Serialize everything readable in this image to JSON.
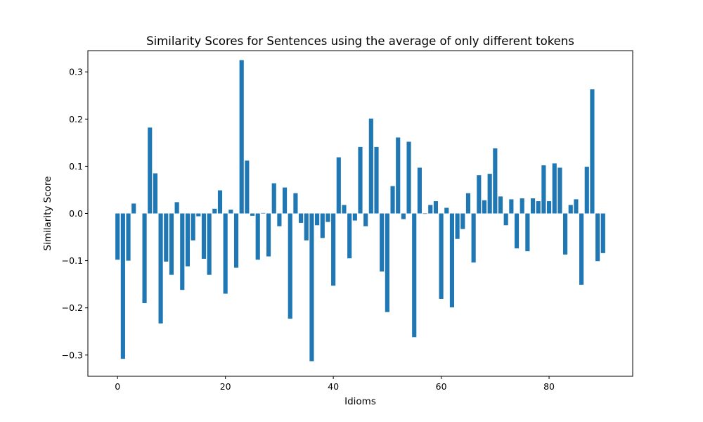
{
  "chart_data": {
    "type": "bar",
    "title": "Similarity Scores for Sentences using the average of only different tokens",
    "xlabel": "Idioms",
    "ylabel": "Similarity Score",
    "xlim": [
      -5.5,
      95.5
    ],
    "ylim": [
      -0.345,
      0.345
    ],
    "xticks": [
      0,
      20,
      40,
      60,
      80
    ],
    "xtick_labels": [
      "0",
      "20",
      "40",
      "60",
      "80"
    ],
    "yticks": [
      -0.3,
      -0.2,
      -0.1,
      0.0,
      0.1,
      0.2,
      0.3
    ],
    "ytick_labels": [
      "−0.3",
      "−0.2",
      "−0.1",
      "0.0",
      "0.1",
      "0.2",
      "0.3"
    ],
    "grid": false,
    "bar_color": "#1f77b4",
    "x": [
      0,
      1,
      2,
      3,
      4,
      5,
      6,
      7,
      8,
      9,
      10,
      11,
      12,
      13,
      14,
      15,
      16,
      17,
      18,
      19,
      20,
      21,
      22,
      23,
      24,
      25,
      26,
      27,
      28,
      29,
      30,
      31,
      32,
      33,
      34,
      35,
      36,
      37,
      38,
      39,
      40,
      41,
      42,
      43,
      44,
      45,
      46,
      47,
      48,
      49,
      50,
      51,
      52,
      53,
      54,
      55,
      56,
      57,
      58,
      59,
      60,
      61,
      62,
      63,
      64,
      65,
      66,
      67,
      68,
      69,
      70,
      71,
      72,
      73,
      74,
      75,
      76,
      77,
      78,
      79,
      80,
      81,
      82,
      83,
      84,
      85,
      86,
      87,
      88,
      89,
      90
    ],
    "values": [
      -0.098,
      -0.308,
      -0.1,
      0.021,
      0.0,
      -0.19,
      0.182,
      0.085,
      -0.233,
      -0.102,
      -0.13,
      0.024,
      -0.162,
      -0.112,
      -0.057,
      -0.006,
      -0.096,
      -0.13,
      0.01,
      0.049,
      -0.17,
      0.008,
      -0.115,
      0.325,
      0.112,
      -0.005,
      -0.098,
      0.001,
      -0.091,
      0.064,
      -0.027,
      0.055,
      -0.223,
      0.043,
      -0.02,
      -0.057,
      -0.313,
      -0.025,
      -0.052,
      -0.018,
      -0.153,
      0.119,
      0.018,
      -0.095,
      -0.015,
      0.141,
      -0.027,
      0.201,
      0.141,
      -0.123,
      -0.209,
      0.058,
      0.161,
      -0.012,
      0.152,
      -0.262,
      0.097,
      -0.001,
      0.018,
      0.026,
      -0.181,
      0.012,
      -0.199,
      -0.054,
      -0.033,
      0.043,
      -0.104,
      0.081,
      0.028,
      0.084,
      0.138,
      0.036,
      -0.025,
      0.03,
      -0.074,
      0.032,
      -0.08,
      0.032,
      0.026,
      0.102,
      0.026,
      0.106,
      0.097,
      -0.087,
      0.018,
      0.03,
      -0.151,
      0.099,
      0.263,
      -0.101,
      -0.084
    ]
  }
}
